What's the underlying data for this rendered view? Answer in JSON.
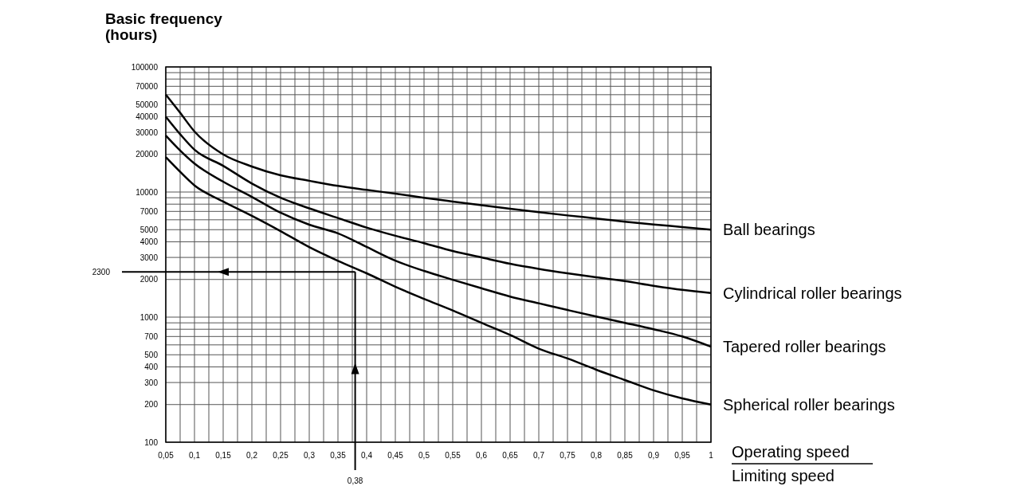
{
  "chart_data": {
    "type": "line",
    "ylabel": "Basic frequency\n(hours)",
    "xlabel": "Operating speed\nLimiting speed",
    "log": "y",
    "grid": true,
    "legend": false,
    "marker": "none",
    "line_style": "solid",
    "xlim": [
      0.05,
      1
    ],
    "ylim": [
      100,
      100000
    ],
    "xticks": [
      {
        "value": 0.05,
        "label": "0,05"
      },
      {
        "value": 0.075,
        "label": null
      },
      {
        "value": 0.1,
        "label": "0,1"
      },
      {
        "value": 0.125,
        "label": null
      },
      {
        "value": 0.15,
        "label": "0,15"
      },
      {
        "value": 0.175,
        "label": null
      },
      {
        "value": 0.2,
        "label": "0,2"
      },
      {
        "value": 0.225,
        "label": null
      },
      {
        "value": 0.25,
        "label": "0,25"
      },
      {
        "value": 0.275,
        "label": null
      },
      {
        "value": 0.3,
        "label": "0,3"
      },
      {
        "value": 0.325,
        "label": null
      },
      {
        "value": 0.35,
        "label": "0,35"
      },
      {
        "value": 0.375,
        "label": null
      },
      {
        "value": 0.4,
        "label": "0,4"
      },
      {
        "value": 0.425,
        "label": null
      },
      {
        "value": 0.45,
        "label": "0,45"
      },
      {
        "value": 0.475,
        "label": null
      },
      {
        "value": 0.5,
        "label": "0,5"
      },
      {
        "value": 0.525,
        "label": null
      },
      {
        "value": 0.55,
        "label": "0,55"
      },
      {
        "value": 0.575,
        "label": null
      },
      {
        "value": 0.6,
        "label": "0,6"
      },
      {
        "value": 0.625,
        "label": null
      },
      {
        "value": 0.65,
        "label": "0,65"
      },
      {
        "value": 0.675,
        "label": null
      },
      {
        "value": 0.7,
        "label": "0,7"
      },
      {
        "value": 0.725,
        "label": null
      },
      {
        "value": 0.75,
        "label": "0,75"
      },
      {
        "value": 0.775,
        "label": null
      },
      {
        "value": 0.8,
        "label": "0,8"
      },
      {
        "value": 0.825,
        "label": null
      },
      {
        "value": 0.85,
        "label": "0,85"
      },
      {
        "value": 0.875,
        "label": null
      },
      {
        "value": 0.9,
        "label": "0,9"
      },
      {
        "value": 0.925,
        "label": null
      },
      {
        "value": 0.95,
        "label": "0,95"
      },
      {
        "value": 0.975,
        "label": null
      },
      {
        "value": 1,
        "label": "1"
      }
    ],
    "yticks": [
      100,
      200,
      300,
      400,
      500,
      {
        "value": 600,
        "label": null
      },
      700,
      {
        "value": 800,
        "label": null
      },
      {
        "value": 900,
        "label": null
      },
      1000,
      2000,
      3000,
      4000,
      5000,
      {
        "value": 6000,
        "label": null
      },
      7000,
      {
        "value": 8000,
        "label": null
      },
      {
        "value": 9000,
        "label": null
      },
      10000,
      20000,
      30000,
      40000,
      50000,
      {
        "value": 60000,
        "label": null
      },
      70000,
      {
        "value": 80000,
        "label": null
      },
      {
        "value": 90000,
        "label": null
      },
      100000
    ],
    "x": [
      0.05,
      0.075,
      0.1,
      0.15,
      0.2,
      0.25,
      0.3,
      0.35,
      0.4,
      0.45,
      0.5,
      0.55,
      0.6,
      0.65,
      0.7,
      0.75,
      0.8,
      0.85,
      0.9,
      0.95,
      1
    ],
    "series": [
      {
        "name": "Ball bearings",
        "color": "#000000",
        "values": [
          60000,
          43000,
          30500,
          20000,
          16000,
          13600,
          12300,
          11200,
          10400,
          9700,
          9000,
          8400,
          7850,
          7350,
          6900,
          6500,
          6150,
          5800,
          5500,
          5250,
          5000
        ]
      },
      {
        "name": "Cylindrical roller bearings",
        "color": "#000000",
        "values": [
          40000,
          29000,
          21800,
          16200,
          11700,
          9000,
          7400,
          6200,
          5200,
          4470,
          3900,
          3380,
          3000,
          2670,
          2430,
          2240,
          2080,
          1940,
          1780,
          1650,
          1560
        ]
      },
      {
        "name": "Tapered roller bearings",
        "color": "#000000",
        "values": [
          28300,
          21500,
          16900,
          12100,
          9150,
          6830,
          5480,
          4670,
          3640,
          2830,
          2340,
          1990,
          1700,
          1460,
          1290,
          1140,
          1010,
          900,
          800,
          700,
          580
        ]
      },
      {
        "name": "Spherical roller bearings",
        "color": "#000000",
        "values": [
          19000,
          14500,
          11300,
          8400,
          6450,
          4870,
          3630,
          2820,
          2240,
          1750,
          1400,
          1130,
          900,
          720,
          560,
          467,
          380,
          314,
          260,
          224,
          200
        ]
      }
    ],
    "ref_lines": [
      {
        "axis": "y",
        "value": 2300,
        "label": "2300",
        "color": "#000000"
      },
      {
        "axis": "x",
        "value": 0.38,
        "label": "0,38",
        "color": "#000000"
      }
    ]
  }
}
